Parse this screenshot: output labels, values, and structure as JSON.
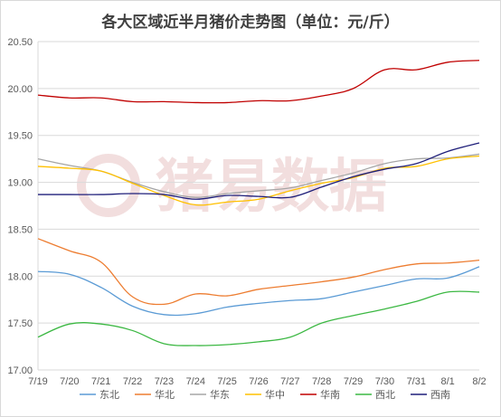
{
  "chart_data": {
    "type": "line",
    "title": "各大区域近半月猪价走势图（单位：元/斤）",
    "watermark": "猪易数据",
    "xlabel": "",
    "ylabel": "",
    "categories": [
      "7/19",
      "7/20",
      "7/21",
      "7/22",
      "7/23",
      "7/24",
      "7/25",
      "7/26",
      "7/27",
      "7/28",
      "7/29",
      "7/30",
      "7/31",
      "8/1",
      "8/2"
    ],
    "ylim": [
      17.0,
      20.5
    ],
    "yticks": [
      "17.00",
      "17.50",
      "18.00",
      "18.50",
      "19.00",
      "19.50",
      "20.00",
      "20.50"
    ],
    "grid": "horizontal",
    "legend_position": "bottom",
    "series": [
      {
        "name": "东北",
        "color": "#5b9bd5",
        "values": [
          18.05,
          18.02,
          17.88,
          17.68,
          17.59,
          17.6,
          17.67,
          17.71,
          17.74,
          17.76,
          17.83,
          17.9,
          17.97,
          17.98,
          18.1
        ]
      },
      {
        "name": "华北",
        "color": "#ed7d31",
        "values": [
          18.4,
          18.27,
          18.15,
          17.78,
          17.7,
          17.81,
          17.79,
          17.86,
          17.9,
          17.94,
          17.99,
          18.07,
          18.13,
          18.14,
          18.17
        ]
      },
      {
        "name": "华东",
        "color": "#a5a5a5",
        "values": [
          19.25,
          19.18,
          19.12,
          19.0,
          18.9,
          18.84,
          18.88,
          18.91,
          18.94,
          19.02,
          19.1,
          19.2,
          19.25,
          19.26,
          19.3
        ]
      },
      {
        "name": "华中",
        "color": "#ffc000",
        "values": [
          19.17,
          19.15,
          19.12,
          18.99,
          18.86,
          18.76,
          18.79,
          18.82,
          18.91,
          18.99,
          19.05,
          19.15,
          19.17,
          19.25,
          19.28
        ]
      },
      {
        "name": "华南",
        "color": "#c00000",
        "values": [
          19.93,
          19.9,
          19.9,
          19.86,
          19.86,
          19.85,
          19.85,
          19.87,
          19.87,
          19.92,
          20.0,
          20.2,
          20.2,
          20.28,
          20.3
        ]
      },
      {
        "name": "西北",
        "color": "#3cb843",
        "values": [
          17.35,
          17.49,
          17.49,
          17.42,
          17.28,
          17.26,
          17.27,
          17.3,
          17.35,
          17.5,
          17.58,
          17.65,
          17.73,
          17.83,
          17.83
        ]
      },
      {
        "name": "西南",
        "color": "#1f1f7a",
        "values": [
          18.87,
          18.87,
          18.87,
          18.88,
          18.87,
          18.82,
          18.86,
          18.85,
          18.84,
          18.95,
          19.06,
          19.14,
          19.2,
          19.33,
          19.42
        ]
      }
    ]
  }
}
